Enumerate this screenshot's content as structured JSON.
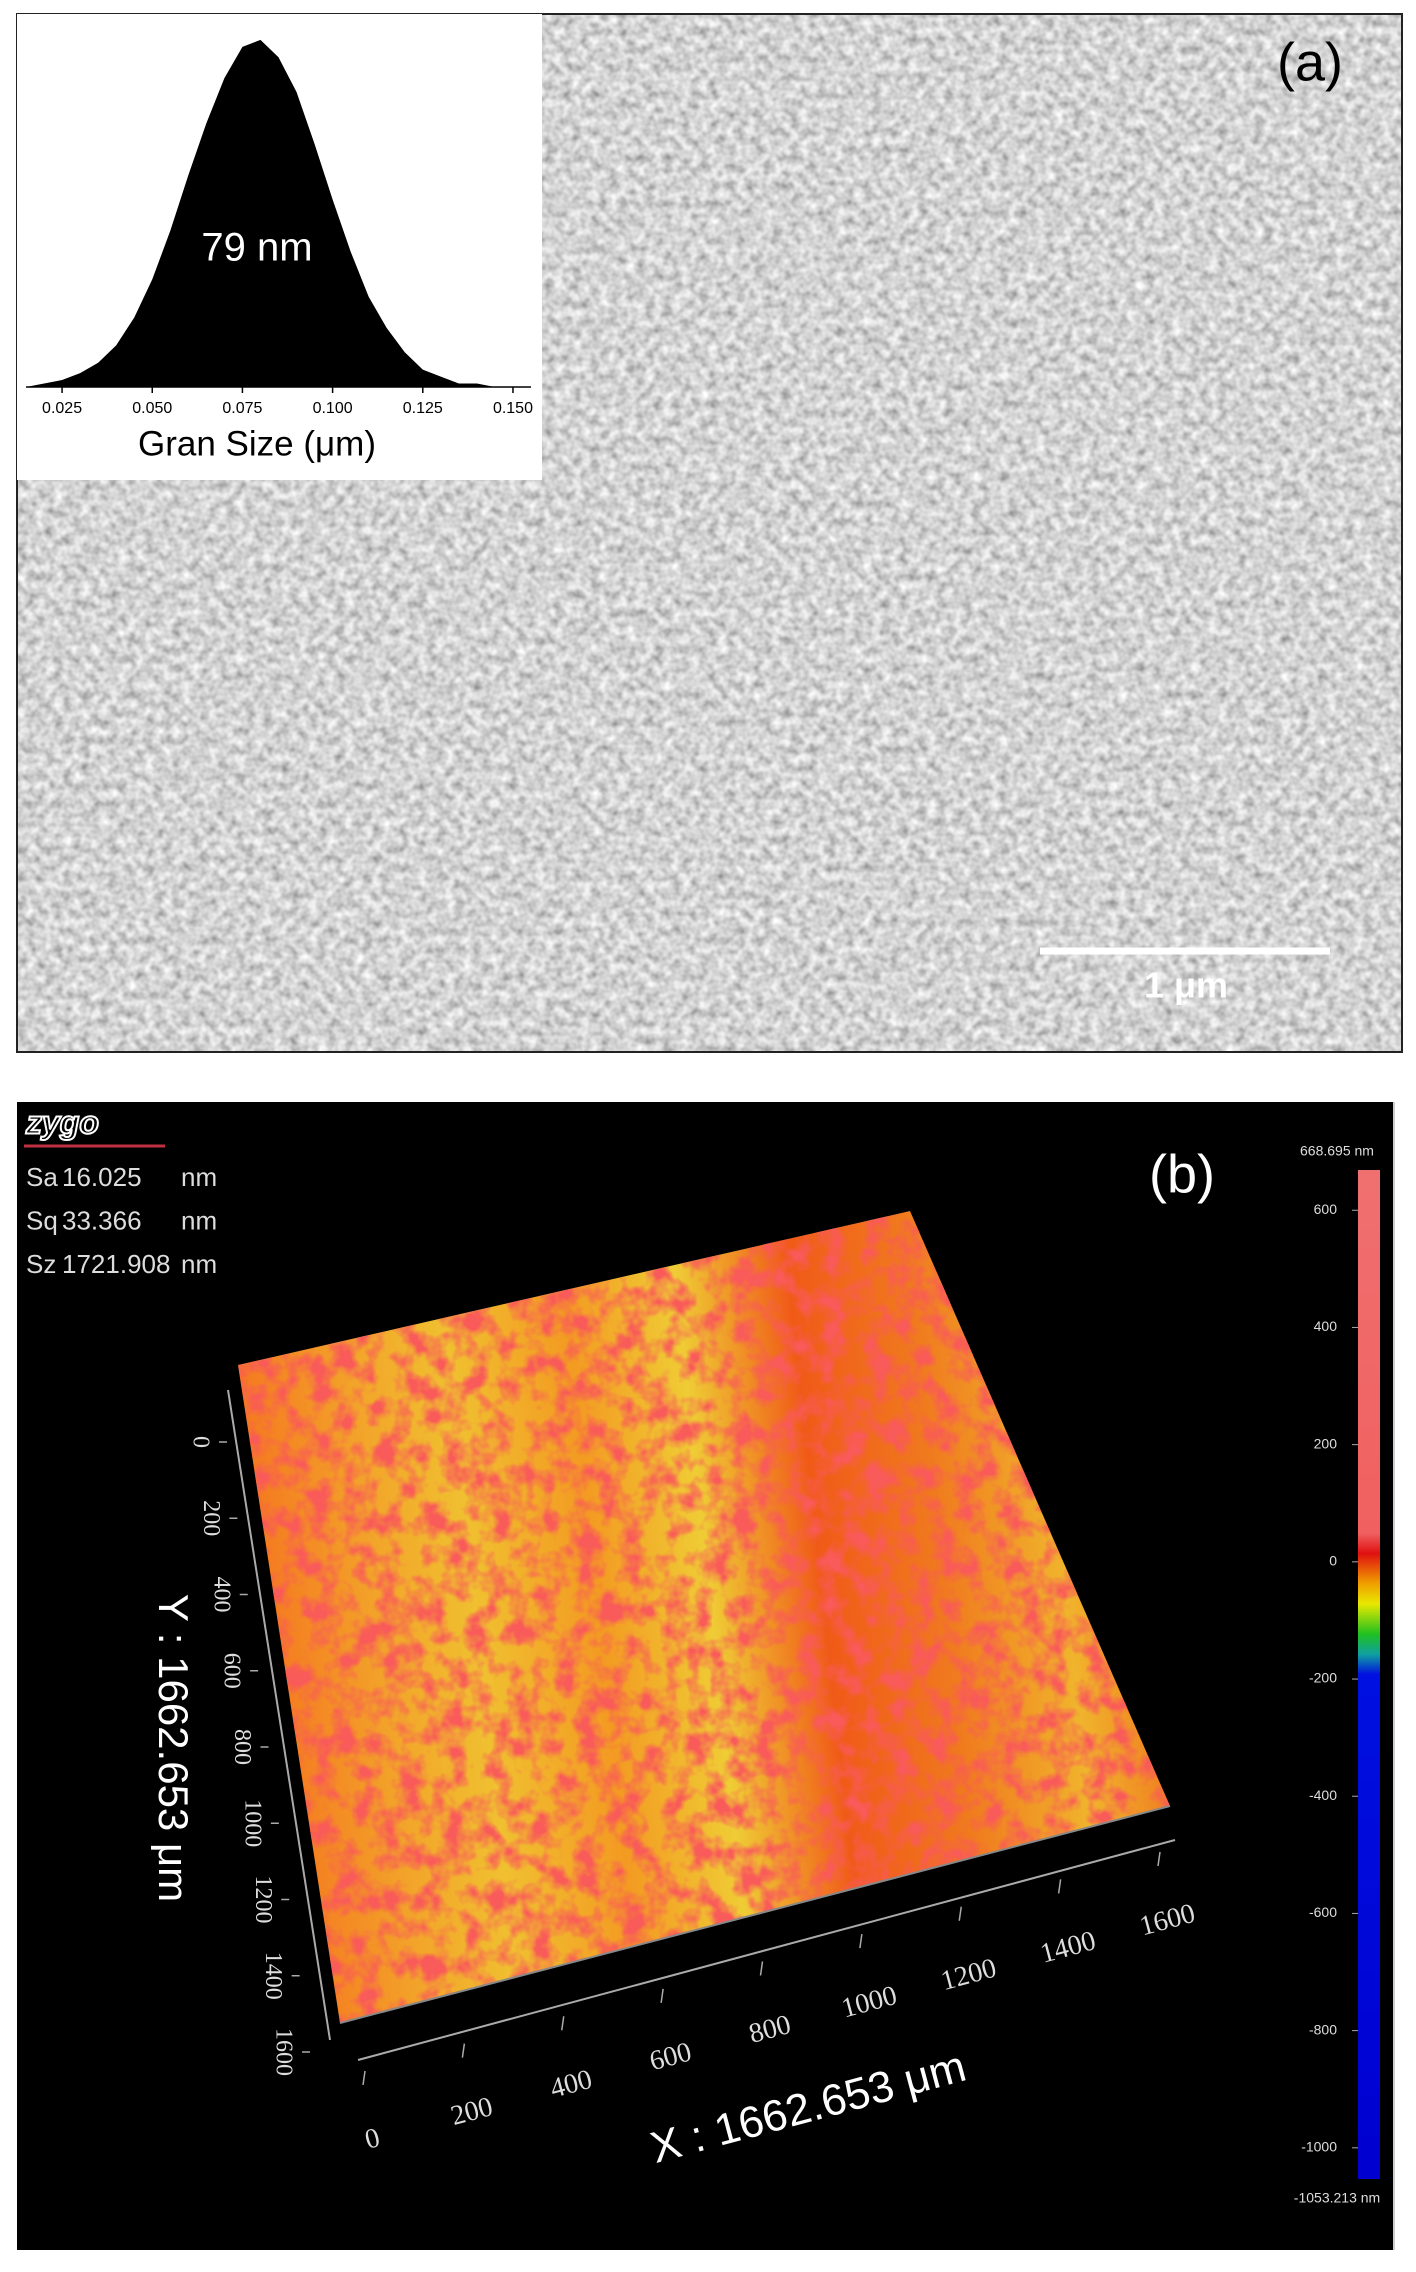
{
  "panel_a": {
    "label": "(a)",
    "scale_bar": "1 μm",
    "inset": {
      "type": "area",
      "annotation": "79 nm",
      "x_label": "Gran Size (μm)",
      "x": [
        0.015,
        0.02,
        0.025,
        0.03,
        0.035,
        0.04,
        0.045,
        0.05,
        0.055,
        0.06,
        0.065,
        0.07,
        0.075,
        0.08,
        0.085,
        0.09,
        0.095,
        0.1,
        0.105,
        0.11,
        0.115,
        0.12,
        0.125,
        0.13,
        0.135,
        0.14,
        0.145,
        0.15
      ],
      "values": [
        0.0,
        0.01,
        0.02,
        0.04,
        0.07,
        0.12,
        0.2,
        0.31,
        0.45,
        0.61,
        0.76,
        0.89,
        0.98,
        1.0,
        0.95,
        0.85,
        0.7,
        0.54,
        0.39,
        0.26,
        0.17,
        0.1,
        0.05,
        0.03,
        0.01,
        0.01,
        0.0,
        0.0
      ],
      "color": "#000000",
      "xlim": [
        0.015,
        0.155
      ],
      "ylim": [
        0,
        1.04
      ],
      "xticks": [
        {
          "value": 0.025,
          "label": "0.025"
        },
        {
          "value": 0.05,
          "label": "0.050"
        },
        {
          "value": 0.075,
          "label": "0.075"
        },
        {
          "value": 0.1,
          "label": "0.100"
        },
        {
          "value": 0.125,
          "label": "0.125"
        },
        {
          "value": 0.15,
          "label": "0.150"
        }
      ]
    }
  },
  "panel_b": {
    "logo": "zygo",
    "label": "(b)",
    "stats": [
      {
        "name": "Sa",
        "value": "16.025",
        "unit": "nm"
      },
      {
        "name": "Sq",
        "value": "33.366",
        "unit": "nm"
      },
      {
        "name": "Sz",
        "value": "1721.908",
        "unit": "nm"
      }
    ],
    "x_axis": {
      "label": "X : 1662.653 μm",
      "ticks": [
        0,
        200,
        400,
        600,
        800,
        1000,
        1200,
        1400,
        1600
      ],
      "lim": [
        0,
        1662.653
      ]
    },
    "y_axis": {
      "label": "Y : 1662.653 μm",
      "ticks": [
        0,
        200,
        400,
        600,
        800,
        1000,
        1200,
        1400,
        1600
      ],
      "lim": [
        0,
        1662.653
      ]
    },
    "colorbar": {
      "lim": [
        {
          "value": -1053.213,
          "label": "-1053.213 nm"
        },
        {
          "value": 668.695,
          "label": "668.695 nm"
        }
      ],
      "ticks": [
        600,
        400,
        200,
        0,
        -200,
        -400,
        -600,
        -800,
        -1000
      ]
    }
  }
}
